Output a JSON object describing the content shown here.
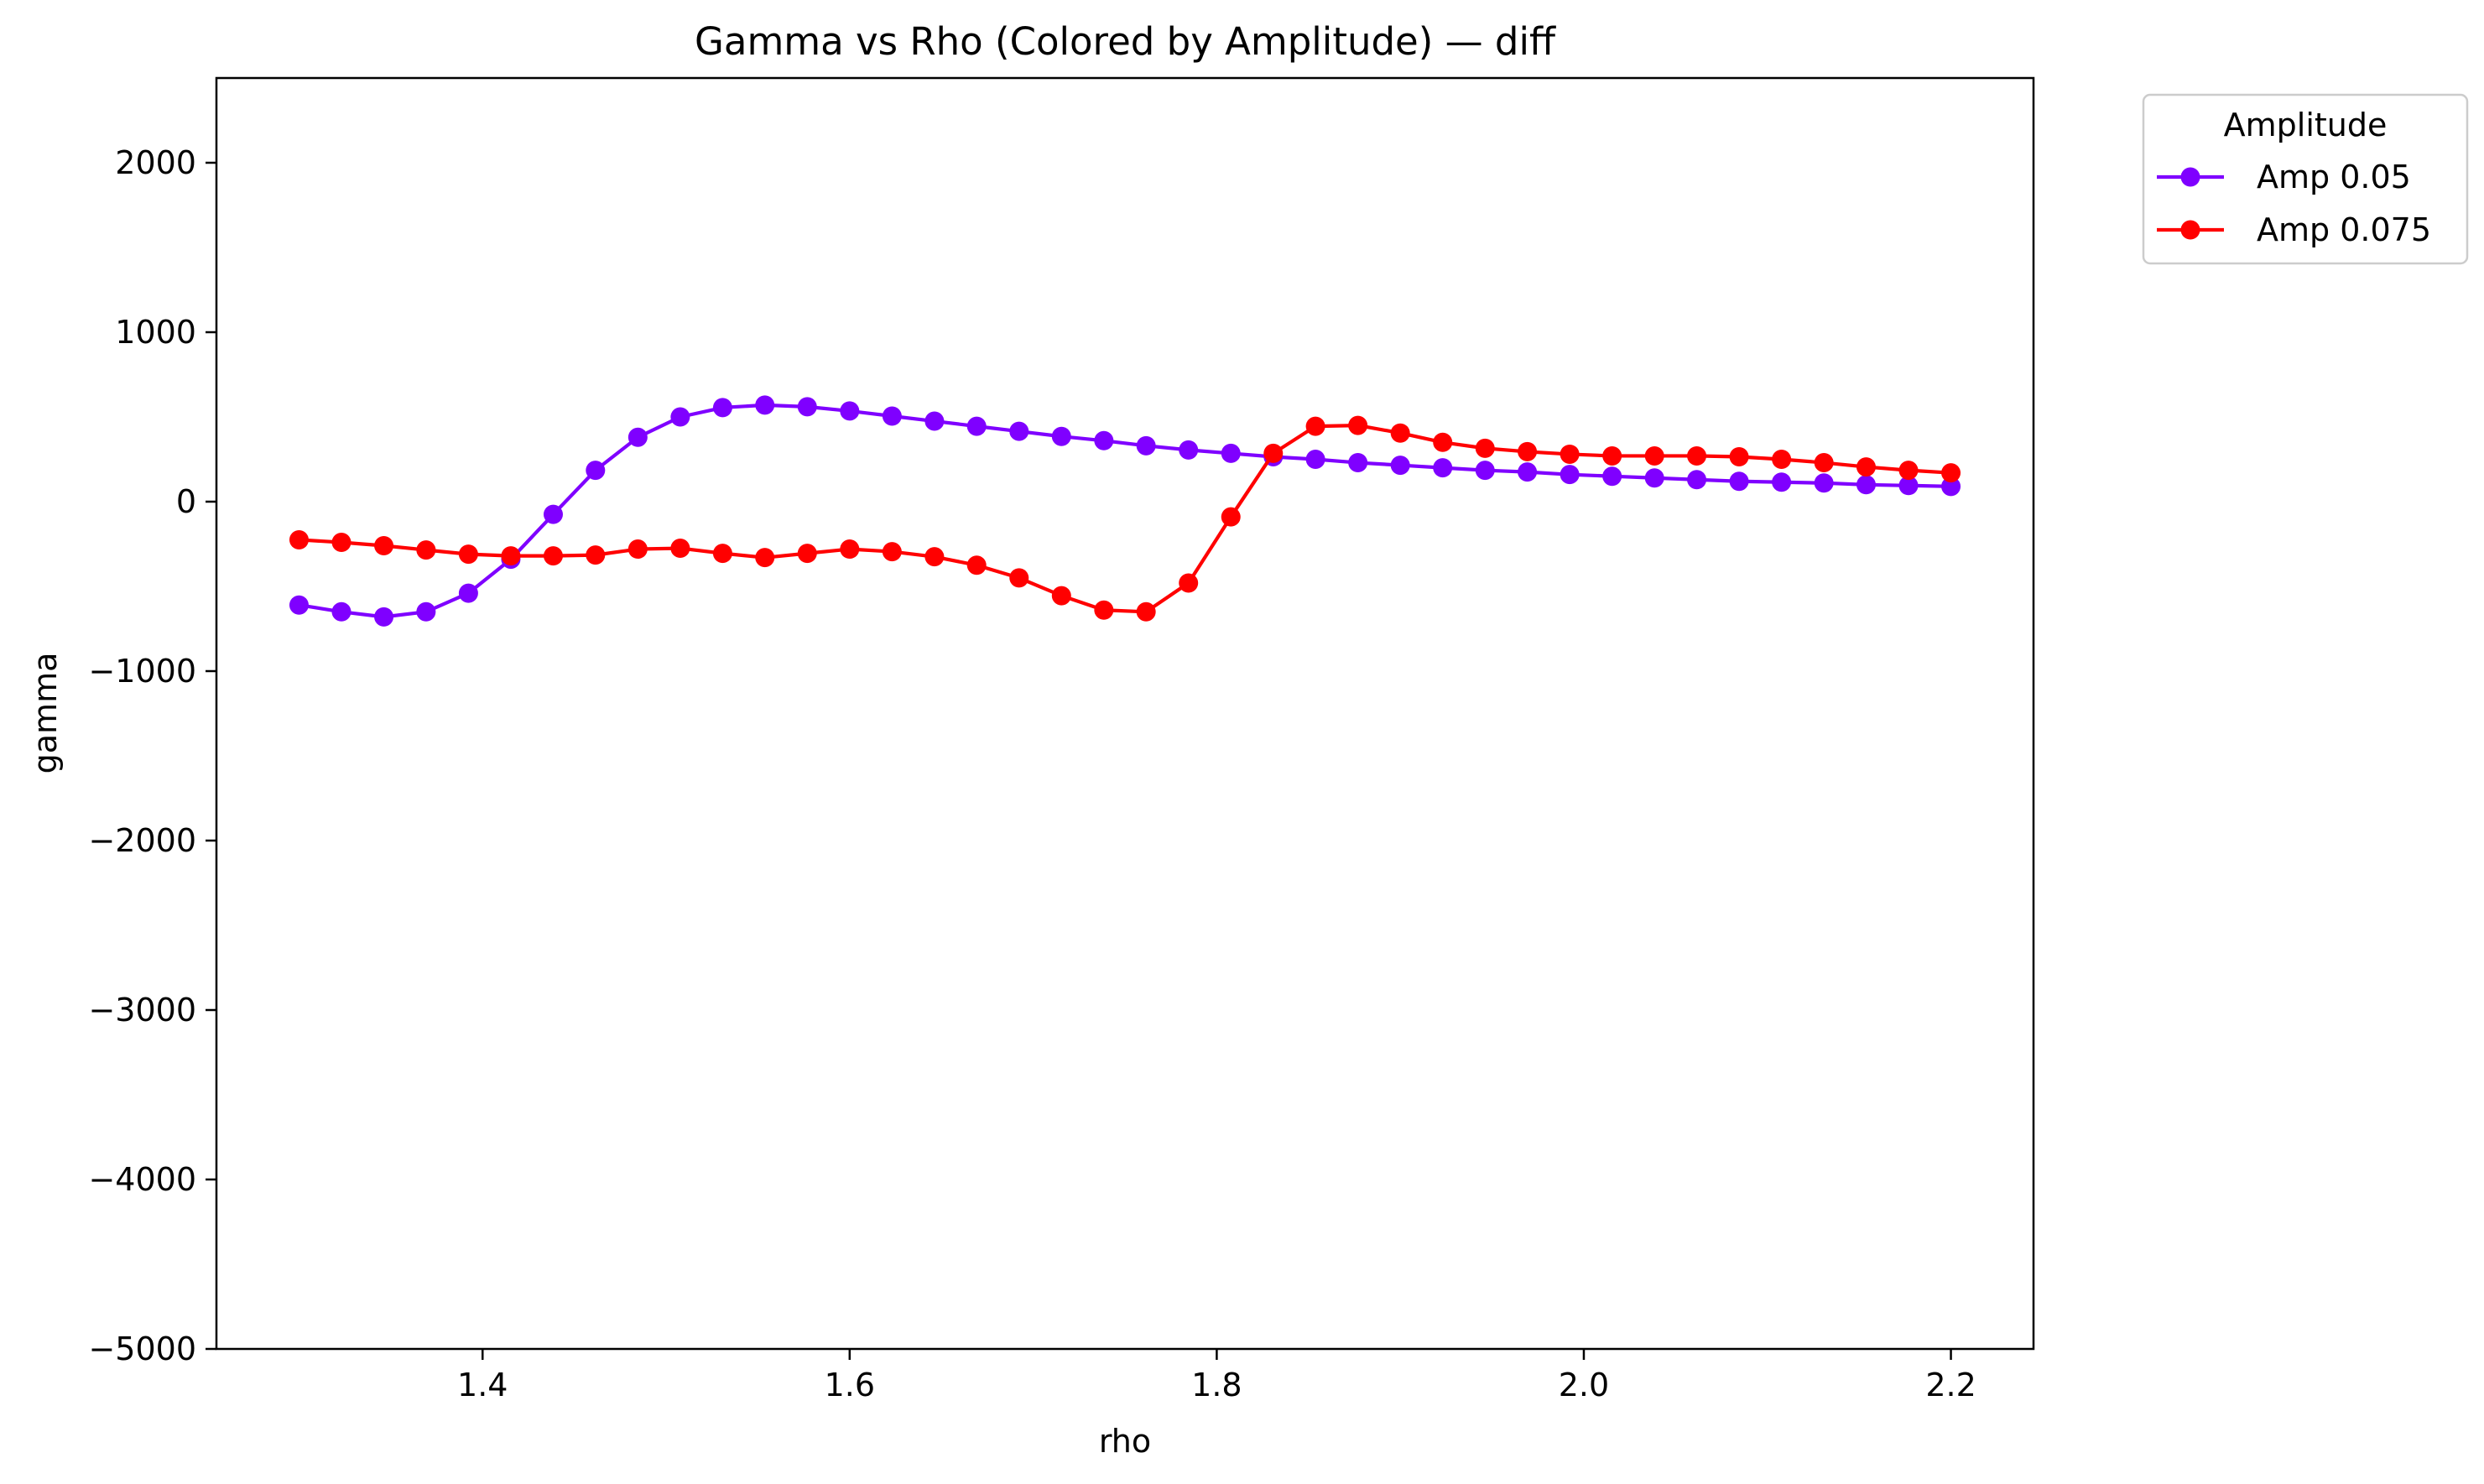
{
  "chart_data": {
    "type": "line",
    "title": "Gamma vs Rho (Colored by Amplitude) — diff",
    "xlabel": "rho",
    "ylabel": "gamma",
    "xlim": [
      1.255,
      2.245
    ],
    "ylim": [
      -5000,
      2500
    ],
    "xticks": [
      1.4,
      1.6,
      1.8,
      2.0,
      2.2
    ],
    "xtick_labels": [
      "1.4",
      "1.6",
      "1.8",
      "2.0",
      "2.2"
    ],
    "yticks": [
      -5000,
      -4000,
      -3000,
      -2000,
      -1000,
      0,
      1000,
      2000
    ],
    "ytick_labels": [
      "−5000",
      "−4000",
      "−3000",
      "−2000",
      "−1000",
      "0",
      "1000",
      "2000"
    ],
    "grid": false,
    "legend": {
      "title": "Amplitude",
      "placement": "outside-top-right"
    },
    "x": [
      1.3,
      1.3231,
      1.3462,
      1.3692,
      1.3923,
      1.4154,
      1.4385,
      1.4615,
      1.4846,
      1.5077,
      1.5308,
      1.5538,
      1.5769,
      1.6,
      1.6231,
      1.6462,
      1.6692,
      1.6923,
      1.7154,
      1.7385,
      1.7615,
      1.7846,
      1.8077,
      1.8308,
      1.8538,
      1.8769,
      1.9,
      1.9231,
      1.9462,
      1.9692,
      1.9923,
      2.0154,
      2.0385,
      2.0615,
      2.0846,
      2.1077,
      2.1308,
      2.1538,
      2.1769,
      2.2
    ],
    "series": [
      {
        "name": "Amp 0.05",
        "color": "#7f00ff",
        "values": [
          -610,
          -650,
          -680,
          -650,
          -540,
          -340,
          -75,
          185,
          380,
          500,
          555,
          570,
          560,
          535,
          505,
          475,
          445,
          415,
          385,
          360,
          330,
          305,
          285,
          265,
          250,
          230,
          215,
          200,
          185,
          175,
          160,
          150,
          140,
          130,
          120,
          115,
          110,
          100,
          95,
          90
        ]
      },
      {
        "name": "Amp 0.075",
        "color": "#ff0000",
        "values": [
          -225,
          -240,
          -260,
          -285,
          -310,
          -320,
          -320,
          -315,
          -280,
          -275,
          -305,
          -330,
          -305,
          -280,
          -295,
          -325,
          -375,
          -450,
          -555,
          -640,
          -650,
          -480,
          -90,
          285,
          445,
          450,
          405,
          350,
          315,
          295,
          280,
          270,
          270,
          270,
          265,
          250,
          230,
          205,
          185,
          170
        ]
      }
    ]
  }
}
